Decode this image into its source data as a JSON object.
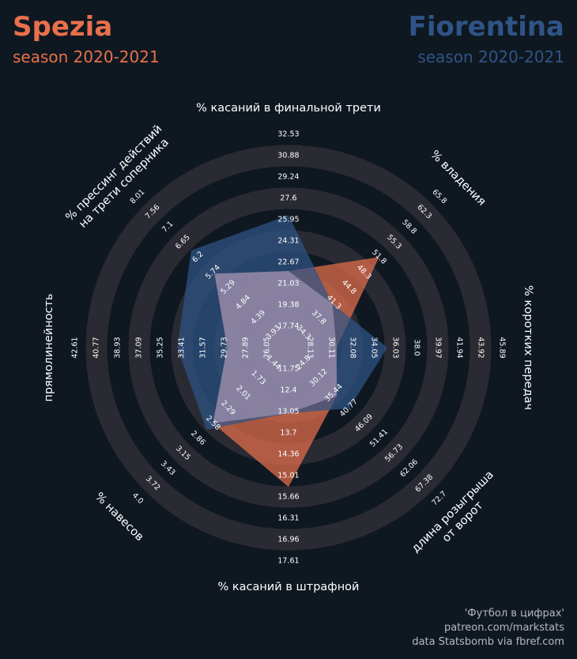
{
  "colors": {
    "background": "#0f1821",
    "home": "#e8704c",
    "away": "#2f5486",
    "ring": "#2a2a32",
    "text": "#ffffff",
    "credits": "#b7b9bd"
  },
  "home_team": {
    "name": "Spezia",
    "season": "season 2020-2021"
  },
  "away_team": {
    "name": "Fiorentina",
    "season": "season 2020-2021"
  },
  "credits": {
    "line1": "'Футбол в цифрах'",
    "line2": "patreon.com/markstats",
    "line3": "data Statsbomb via fbref.com"
  },
  "chart_data": {
    "type": "radar",
    "title": "Spezia vs Fiorentina, season 2020-2021",
    "legend": [
      "Spezia",
      "Fiorentina"
    ],
    "axes": [
      {
        "label": "% касаний в финальной трети",
        "lines": [
          "% касаний в финальной трети"
        ],
        "ticks": [
          "17.74",
          "19.38",
          "21.03",
          "22.67",
          "24.31",
          "25.95",
          "27.6",
          "29.24",
          "30.88",
          "32.53"
        ],
        "min": 16.09,
        "max": 32.53
      },
      {
        "label": "% владения",
        "lines": [
          "% владения"
        ],
        "ticks": [
          "34.3",
          "37.8",
          "41.3",
          "44.8",
          "48.3",
          "51.8",
          "55.3",
          "58.8",
          "62.3",
          "65.8"
        ],
        "min": 30.8,
        "max": 65.8
      },
      {
        "label": "% коротких передач",
        "lines": [
          "% коротких передач"
        ],
        "ticks": [
          "28.13",
          "30.11",
          "32.08",
          "34.05",
          "36.03",
          "38.0",
          "39.97",
          "41.94",
          "43.92",
          "45.89"
        ],
        "min": 26.16,
        "max": 45.89
      },
      {
        "label": "длина розыгрыша от ворот",
        "lines": [
          "длина розыгрыша",
          "от ворот"
        ],
        "ticks": [
          "24.8",
          "30.12",
          "35.44",
          "40.77",
          "46.09",
          "51.41",
          "56.73",
          "62.06",
          "67.38",
          "72.7"
        ],
        "min": 19.48,
        "max": 72.7
      },
      {
        "label": "% касаний в штрафной",
        "lines": [
          "% касаний в штрафной"
        ],
        "ticks": [
          "11.75",
          "12.4",
          "13.05",
          "13.7",
          "14.36",
          "15.01",
          "15.66",
          "16.31",
          "16.96",
          "17.61"
        ],
        "min": 11.1,
        "max": 17.61
      },
      {
        "label": "% навесов",
        "lines": [
          "% навесов"
        ],
        "ticks": [
          "1.44",
          "1.73",
          "2.01",
          "2.29",
          "2.58",
          "2.86",
          "3.15",
          "3.43",
          "3.72",
          "4.0"
        ],
        "min": 1.16,
        "max": 4.0
      },
      {
        "label": "прямолинейность",
        "lines": [
          "прямолинейность"
        ],
        "ticks": [
          "26.05",
          "27.89",
          "29.73",
          "31.57",
          "33.41",
          "35.25",
          "37.09",
          "38.93",
          "40.77",
          "42.61"
        ],
        "min": 24.21,
        "max": 42.61
      },
      {
        "label": "% прессинг действий на трети соперника",
        "lines": [
          "% прессинг действий",
          "на трети соперника"
        ],
        "ticks": [
          "3.93",
          "4.39",
          "4.84",
          "5.29",
          "5.74",
          "6.2",
          "6.65",
          "7.1",
          "7.56",
          "8.01"
        ],
        "min": 3.48,
        "max": 8.01
      }
    ],
    "series": [
      {
        "name": "Spezia",
        "values": [
          22.0,
          51.8,
          30.6,
          36.5,
          15.35,
          2.58,
          29.5,
          5.7
        ]
      },
      {
        "name": "Fiorentina",
        "values": [
          26.3,
          41.0,
          35.3,
          40.9,
          13.1,
          2.7,
          33.8,
          6.4
        ]
      }
    ]
  }
}
